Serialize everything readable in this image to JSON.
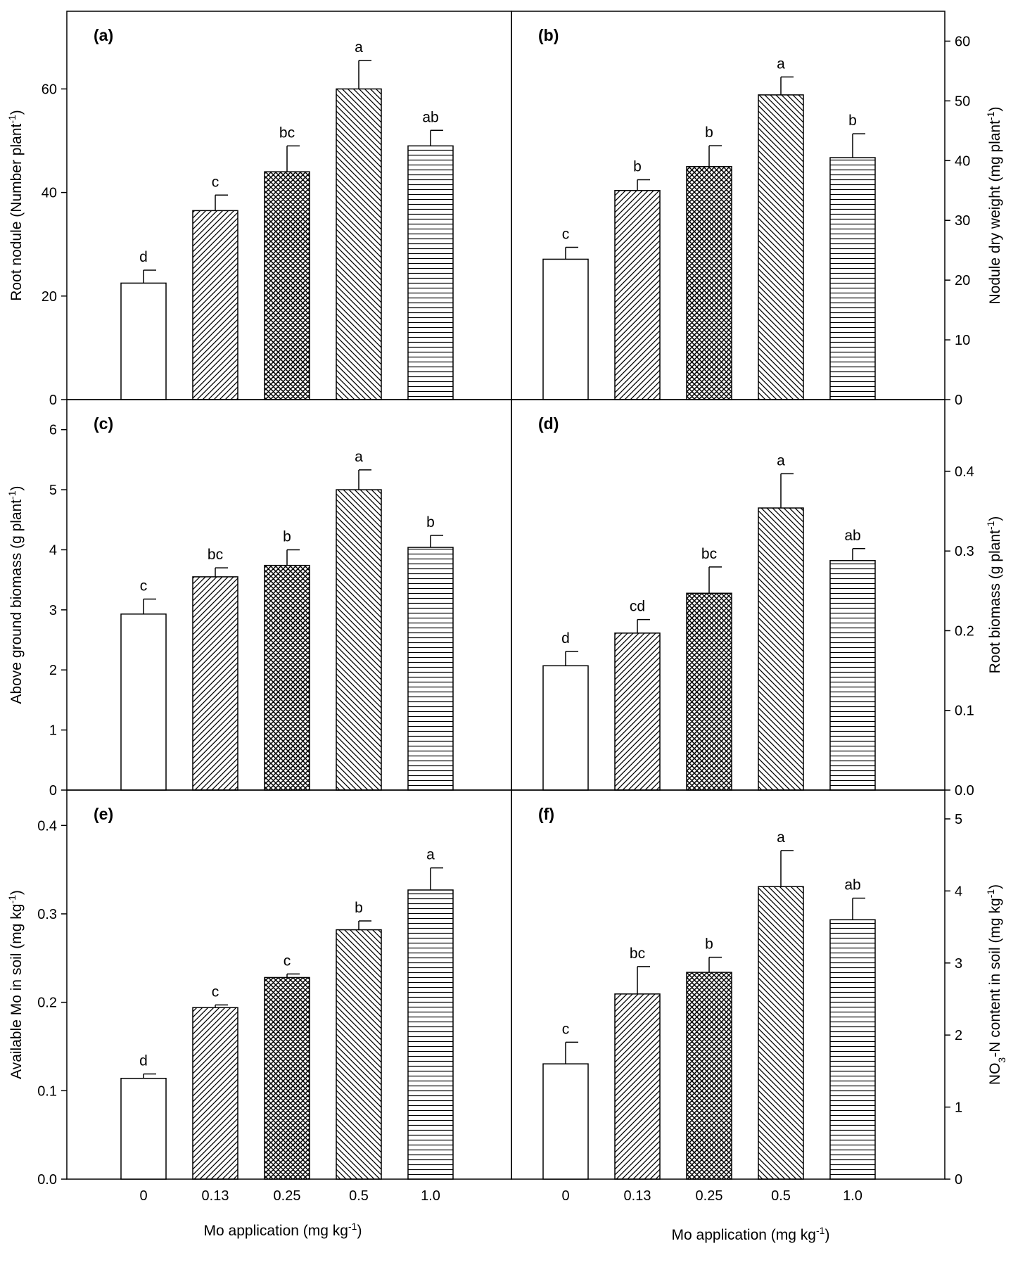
{
  "categories": [
    "0",
    "0.13",
    "0.25",
    "0.5",
    "1.0"
  ],
  "xlabel_parts": [
    "Mo application (mg kg",
    "-1",
    ")"
  ],
  "chart_data": [
    {
      "type": "bar",
      "panel": "(a)",
      "ylabel_parts": [
        "Root nodule (Number plant",
        "-1",
        ")"
      ],
      "ylim": [
        0,
        75
      ],
      "yticks": [
        0,
        20,
        40,
        60
      ],
      "axis_side": "left",
      "values": [
        22.5,
        36.5,
        44,
        60,
        49
      ],
      "errors": [
        2.5,
        3,
        5,
        5.5,
        3
      ],
      "letters": [
        "d",
        "c",
        "bc",
        "a",
        "ab"
      ]
    },
    {
      "type": "bar",
      "panel": "(b)",
      "ylabel_parts": [
        "Nodule dry weight (mg plant",
        "-1",
        ")"
      ],
      "ylim": [
        0,
        65
      ],
      "yticks": [
        0,
        10,
        20,
        30,
        40,
        50,
        60
      ],
      "axis_side": "right",
      "values": [
        23.5,
        35,
        39,
        51,
        40.5
      ],
      "errors": [
        2,
        1.8,
        3.5,
        3,
        4
      ],
      "letters": [
        "c",
        "b",
        "b",
        "a",
        "b"
      ]
    },
    {
      "type": "bar",
      "panel": "(c)",
      "ylabel_parts": [
        "Above ground biomass (g plant",
        "-1",
        ")"
      ],
      "ylim": [
        0,
        6.5
      ],
      "yticks": [
        0,
        1,
        2,
        3,
        4,
        5,
        6
      ],
      "axis_side": "left",
      "values": [
        2.93,
        3.55,
        3.74,
        5.0,
        4.04
      ],
      "errors": [
        0.25,
        0.15,
        0.26,
        0.33,
        0.2
      ],
      "letters": [
        "c",
        "bc",
        "b",
        "a",
        "b"
      ]
    },
    {
      "type": "bar",
      "panel": "(d)",
      "ylabel_parts": [
        "Root biomass (g plant",
        "-1",
        ")"
      ],
      "ylim": [
        0,
        0.49
      ],
      "yticks": [
        0.0,
        0.1,
        0.2,
        0.3,
        0.4
      ],
      "tick_decimals": 1,
      "axis_side": "right",
      "values": [
        0.156,
        0.197,
        0.247,
        0.354,
        0.288
      ],
      "errors": [
        0.018,
        0.017,
        0.033,
        0.043,
        0.015
      ],
      "letters": [
        "d",
        "cd",
        "bc",
        "a",
        "ab"
      ]
    },
    {
      "type": "bar",
      "panel": "(e)",
      "ylabel_parts": [
        "Available Mo in soil (mg kg",
        "-1",
        ")"
      ],
      "ylim": [
        0,
        0.44
      ],
      "yticks": [
        0.0,
        0.1,
        0.2,
        0.3,
        0.4
      ],
      "tick_decimals": 1,
      "axis_side": "left",
      "values": [
        0.114,
        0.194,
        0.228,
        0.282,
        0.327
      ],
      "errors": [
        0.005,
        0.003,
        0.004,
        0.01,
        0.025
      ],
      "letters": [
        "d",
        "c",
        "c",
        "b",
        "a"
      ]
    },
    {
      "type": "bar",
      "panel": "(f)",
      "ylabel_parts": [
        "NO",
        "3",
        "-N content in soil (mg kg",
        "-1",
        ")"
      ],
      "ylim": [
        0,
        5.4
      ],
      "yticks": [
        0,
        1,
        2,
        3,
        4,
        5
      ],
      "axis_side": "right",
      "values": [
        1.6,
        2.57,
        2.87,
        4.06,
        3.6
      ],
      "errors": [
        0.3,
        0.38,
        0.21,
        0.5,
        0.3
      ],
      "letters": [
        "c",
        "bc",
        "b",
        "a",
        "ab"
      ]
    }
  ]
}
